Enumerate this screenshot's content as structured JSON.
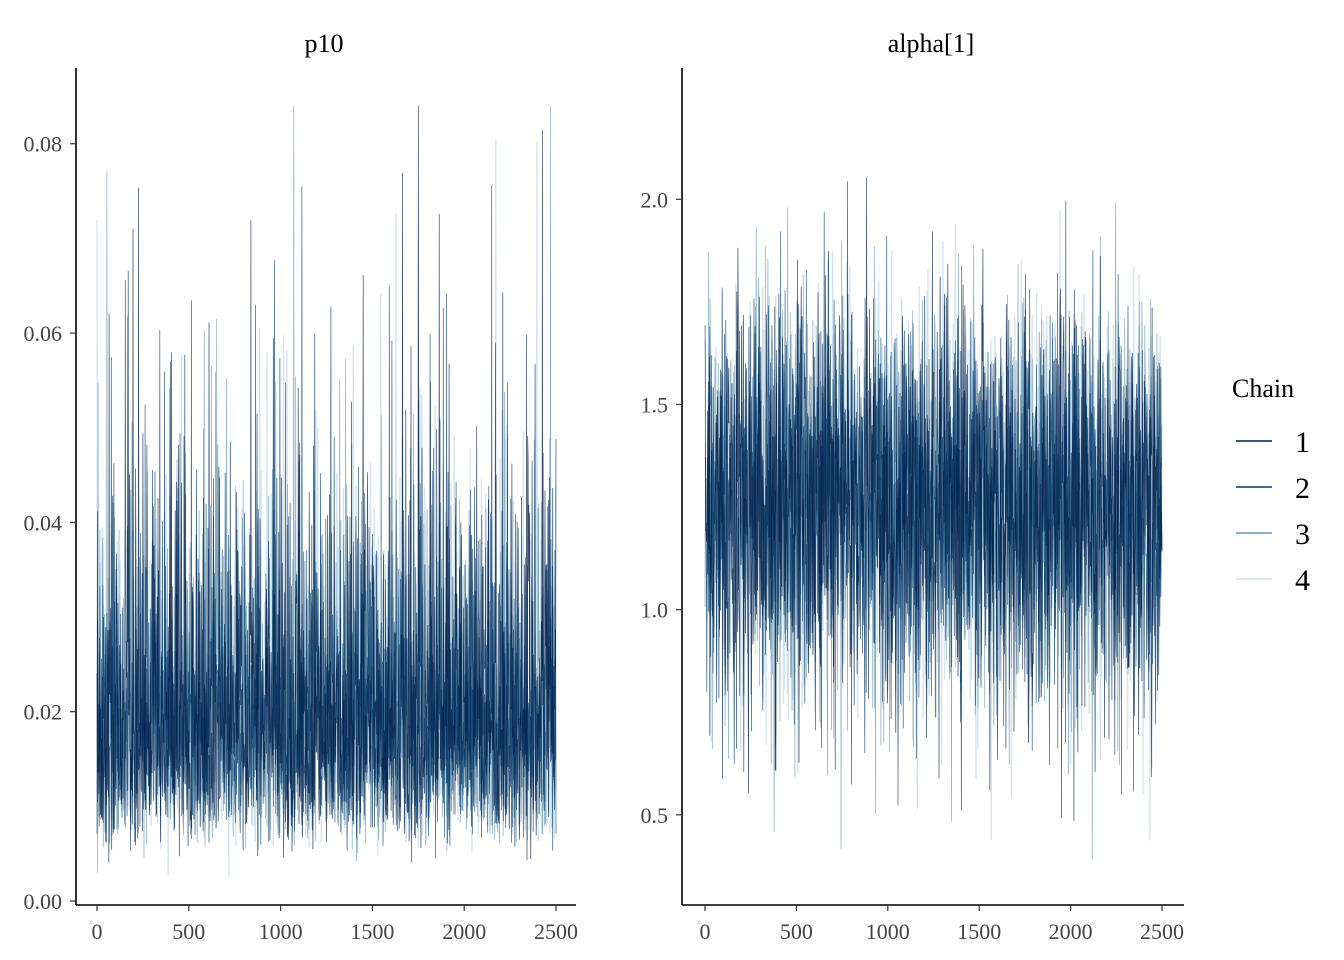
{
  "legend": {
    "title": "Chain",
    "entries": [
      {
        "label": "1",
        "color": "#011f4b"
      },
      {
        "label": "2",
        "color": "#03396c"
      },
      {
        "label": "3",
        "color": "#6497b1"
      },
      {
        "label": "4",
        "color": "#d1e1ec"
      }
    ]
  },
  "chart_data": [
    {
      "type": "line",
      "title": "p10",
      "xlabel": "",
      "ylabel": "",
      "xlim": [
        0,
        2500
      ],
      "ylim": [
        0,
        0.088
      ],
      "x_ticks": [
        0,
        500,
        1000,
        1500,
        2000,
        2500
      ],
      "x_tick_labels": [
        "0",
        "500",
        "1000",
        "1500",
        "2000",
        "2500"
      ],
      "y_ticks": [
        0.0,
        0.02,
        0.04,
        0.06,
        0.08
      ],
      "y_tick_labels": [
        "0.00",
        "0.02",
        "0.04",
        "0.06",
        "0.08"
      ],
      "iterations": 2500,
      "typical_center": 0.019,
      "typical_spread": 0.009,
      "observed_min": 0.002,
      "observed_max": 0.084,
      "legend_position": "right",
      "grid": false
    },
    {
      "type": "line",
      "title": "alpha[1]",
      "xlabel": "",
      "ylabel": "",
      "xlim": [
        0,
        2500
      ],
      "ylim": [
        0.29,
        2.32
      ],
      "x_ticks": [
        0,
        500,
        1000,
        1500,
        2000,
        2500
      ],
      "x_tick_labels": [
        "0",
        "500",
        "1000",
        "1500",
        "2000",
        "2500"
      ],
      "y_ticks": [
        0.5,
        1.0,
        1.5,
        2.0
      ],
      "y_tick_labels": [
        "0.5",
        "1.0",
        "1.5",
        "2.0"
      ],
      "iterations": 2500,
      "typical_center": 1.26,
      "typical_spread": 0.24,
      "observed_min": 0.37,
      "observed_max": 2.23,
      "legend_position": "right",
      "grid": false
    }
  ]
}
